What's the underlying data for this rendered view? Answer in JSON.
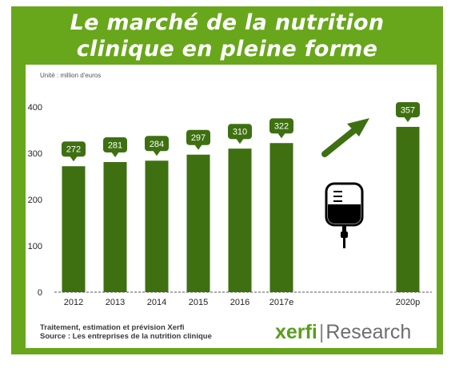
{
  "header": {
    "title_line1": "Le marché de la nutrition",
    "title_line2": "clinique en pleine forme"
  },
  "chart_data": {
    "type": "bar",
    "unit_label": "Unité : million d'euros",
    "categories": [
      "2012",
      "2013",
      "2014",
      "2015",
      "2016",
      "2017e",
      "2020p"
    ],
    "values": [
      272,
      281,
      284,
      297,
      310,
      322,
      357
    ],
    "value_labels": [
      "272",
      "281",
      "284",
      "297",
      "310",
      "322",
      "357"
    ],
    "ylim": [
      0,
      400
    ],
    "yticks": [
      "0",
      "100",
      "200",
      "300",
      "400"
    ],
    "grid": false,
    "baseline_style": "dashed",
    "bar_color": "#3e7011",
    "callout_color": "#3e7011",
    "annotations": [
      "up-arrow-icon",
      "iv-drip-bag-icon"
    ]
  },
  "footer": {
    "line1": "Traitement, estimation et prévision Xerfi",
    "line2": "Source : Les entreprises de la nutrition clinique",
    "brand_part1": "xerfi",
    "brand_separator": "|",
    "brand_part2": "Research"
  },
  "colors": {
    "frame_green": "#68a71b",
    "bar_green": "#3e7011",
    "arrow_green": "#3e7011"
  }
}
